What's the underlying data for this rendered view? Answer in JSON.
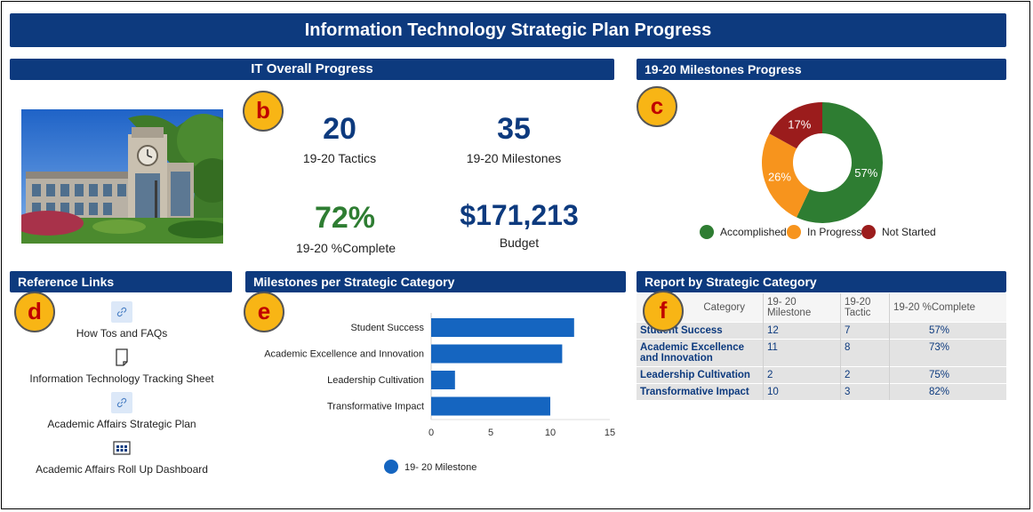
{
  "header": {
    "title": "Information Technology Strategic Plan Progress"
  },
  "overall": {
    "title": "IT Overall Progress",
    "badge": "b",
    "tactics": {
      "value": "20",
      "label": "19-20 Tactics"
    },
    "milestones": {
      "value": "35",
      "label": "19-20 Milestones"
    },
    "complete": {
      "value": "72%",
      "label": "19-20 %Complete"
    },
    "budget": {
      "value": "$171,213",
      "label": "Budget"
    },
    "colors": {
      "navy": "#0d3a7e",
      "green": "#2e7d32"
    }
  },
  "milestones_progress": {
    "title": "19-20 Milestones Progress",
    "badge": "c",
    "legend": [
      {
        "label": "Accomplished",
        "color": "#2e7d32"
      },
      {
        "label": "In Progress",
        "color": "#f7941d"
      },
      {
        "label": "Not Started",
        "color": "#9b1c1c"
      }
    ]
  },
  "reference_links": {
    "title": "Reference Links",
    "badge": "d",
    "items": [
      {
        "label": "How Tos and FAQs",
        "icon": "link-icon"
      },
      {
        "label": "Information Technology Tracking Sheet",
        "icon": "document-icon"
      },
      {
        "label": "Academic Affairs Strategic Plan",
        "icon": "link-icon"
      },
      {
        "label": "Academic Affairs Roll Up Dashboard",
        "icon": "dashboard-icon"
      }
    ]
  },
  "category_chart": {
    "title": "Milestones per Strategic Category",
    "badge": "e"
  },
  "report": {
    "title": "Report by Strategic Category",
    "badge": "f",
    "columns": [
      "Category",
      "19- 20 Milestone",
      "19-20 Tactic",
      "19-20 %Complete"
    ],
    "rows": [
      {
        "category": "Student Success",
        "milestone": "12",
        "tactic": "7",
        "complete": "57%"
      },
      {
        "category": "Academic Excellence and Innovation",
        "milestone": "11",
        "tactic": "8",
        "complete": "73%"
      },
      {
        "category": "Leadership Cultivation",
        "milestone": "2",
        "tactic": "2",
        "complete": "75%"
      },
      {
        "category": "Transformative Impact",
        "milestone": "10",
        "tactic": "3",
        "complete": "82%"
      }
    ]
  },
  "chart_data": [
    {
      "type": "pie",
      "categories": [
        "Accomplished",
        "In Progress",
        "Not Started"
      ],
      "values": [
        57,
        26,
        17
      ],
      "value_labels": [
        "57%",
        "26%",
        "17%"
      ],
      "colors": [
        "#2e7d32",
        "#f7941d",
        "#9b1c1c"
      ],
      "donut": true,
      "legend_position": "bottom"
    },
    {
      "type": "bar",
      "orientation": "horizontal",
      "categories": [
        "Student Success",
        "Academic Excellence and Innovation",
        "Leadership Cultivation",
        "Transformative Impact"
      ],
      "series": [
        {
          "name": "19- 20 Milestone",
          "values": [
            12,
            11,
            2,
            10
          ],
          "color": "#1565c0"
        }
      ],
      "xlim": [
        0,
        15
      ],
      "xticks": [
        "0",
        "5",
        "10",
        "15"
      ],
      "legend_position": "bottom"
    }
  ]
}
